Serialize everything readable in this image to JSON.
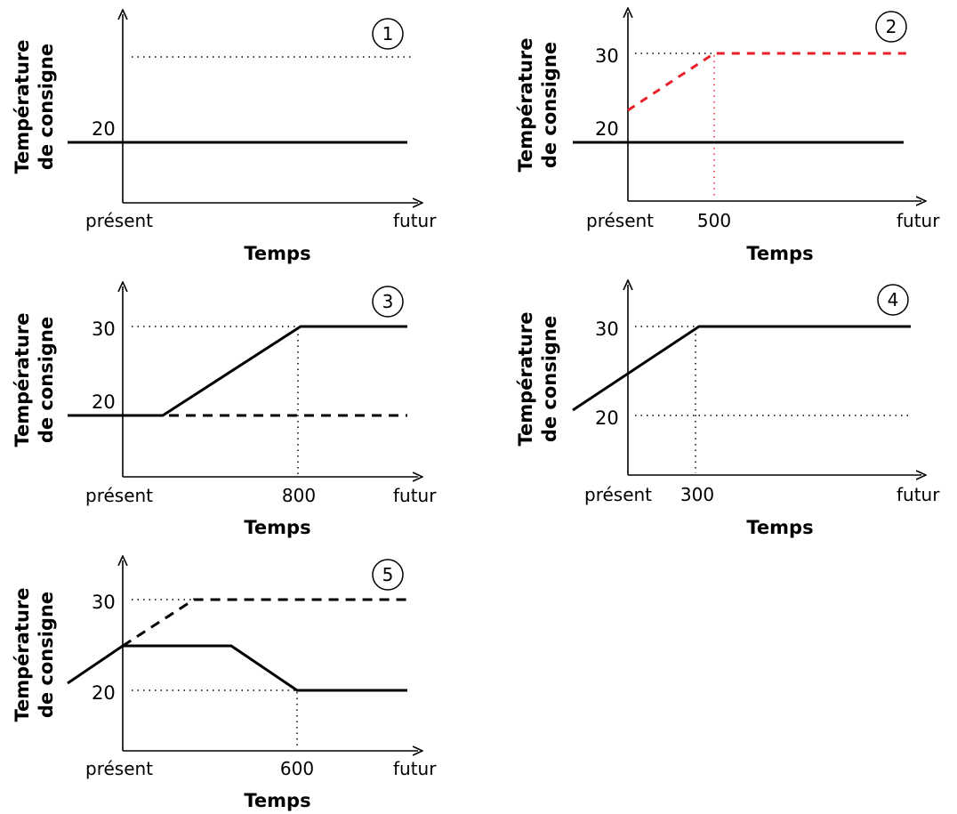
{
  "common": {
    "ylabel_line1": "Température",
    "ylabel_line2": "de consigne",
    "xlabel": "Temps",
    "x_start": "présent",
    "x_end": "futur"
  },
  "colors": {
    "black": "#000000",
    "red": "#e8202a"
  },
  "panels": [
    {
      "id": 1,
      "number": "1",
      "yticks": [
        "20"
      ],
      "xtick": ""
    },
    {
      "id": 2,
      "number": "2",
      "yticks": [
        "30",
        "20"
      ],
      "xtick": "500"
    },
    {
      "id": 3,
      "number": "3",
      "yticks": [
        "30",
        "20"
      ],
      "xtick": "800"
    },
    {
      "id": 4,
      "number": "4",
      "yticks": [
        "30",
        "20"
      ],
      "xtick": "300"
    },
    {
      "id": 5,
      "number": "5",
      "yticks": [
        "30",
        "20"
      ],
      "xtick": "600"
    }
  ]
}
